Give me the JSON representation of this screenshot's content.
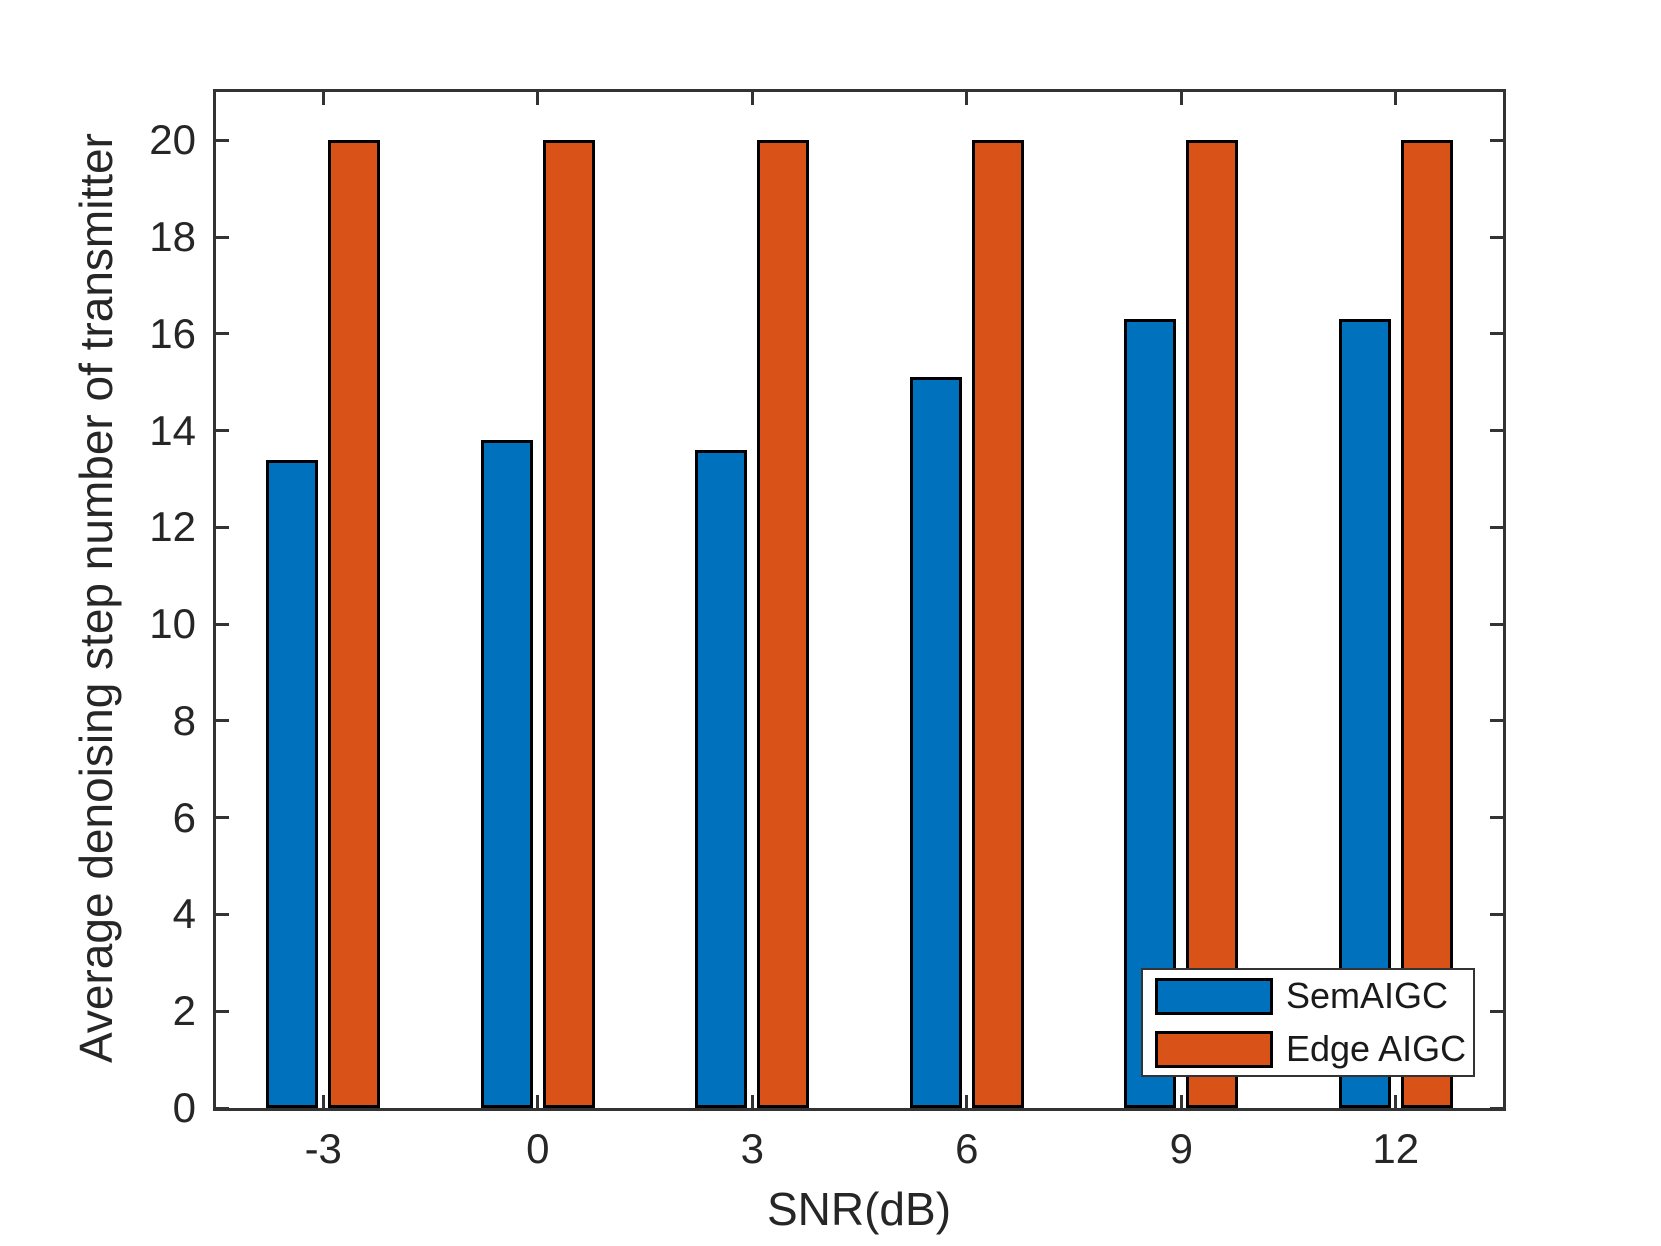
{
  "figure": {
    "background": "#ffffff",
    "axis_color": "#333333",
    "text_color": "#262626"
  },
  "chart_data": {
    "type": "bar",
    "title": "",
    "xlabel": "SNR(dB)",
    "ylabel": "Average denoising step number of transmitter",
    "categories": [
      "-3",
      "0",
      "3",
      "6",
      "9",
      "12"
    ],
    "series": [
      {
        "name": "SemAIGC",
        "color": "#0072BD",
        "values": [
          13.4,
          13.8,
          13.6,
          15.1,
          16.3,
          16.3
        ]
      },
      {
        "name": "Edge AIGC",
        "color": "#D95319",
        "values": [
          20,
          20,
          20,
          20,
          20,
          20
        ]
      }
    ],
    "ylim": [
      0,
      21
    ],
    "yticks": [
      0,
      2,
      4,
      6,
      8,
      10,
      12,
      14,
      16,
      18,
      20
    ],
    "grid": false,
    "legend_position": "south-east",
    "bar_edge_color": "#000000"
  }
}
